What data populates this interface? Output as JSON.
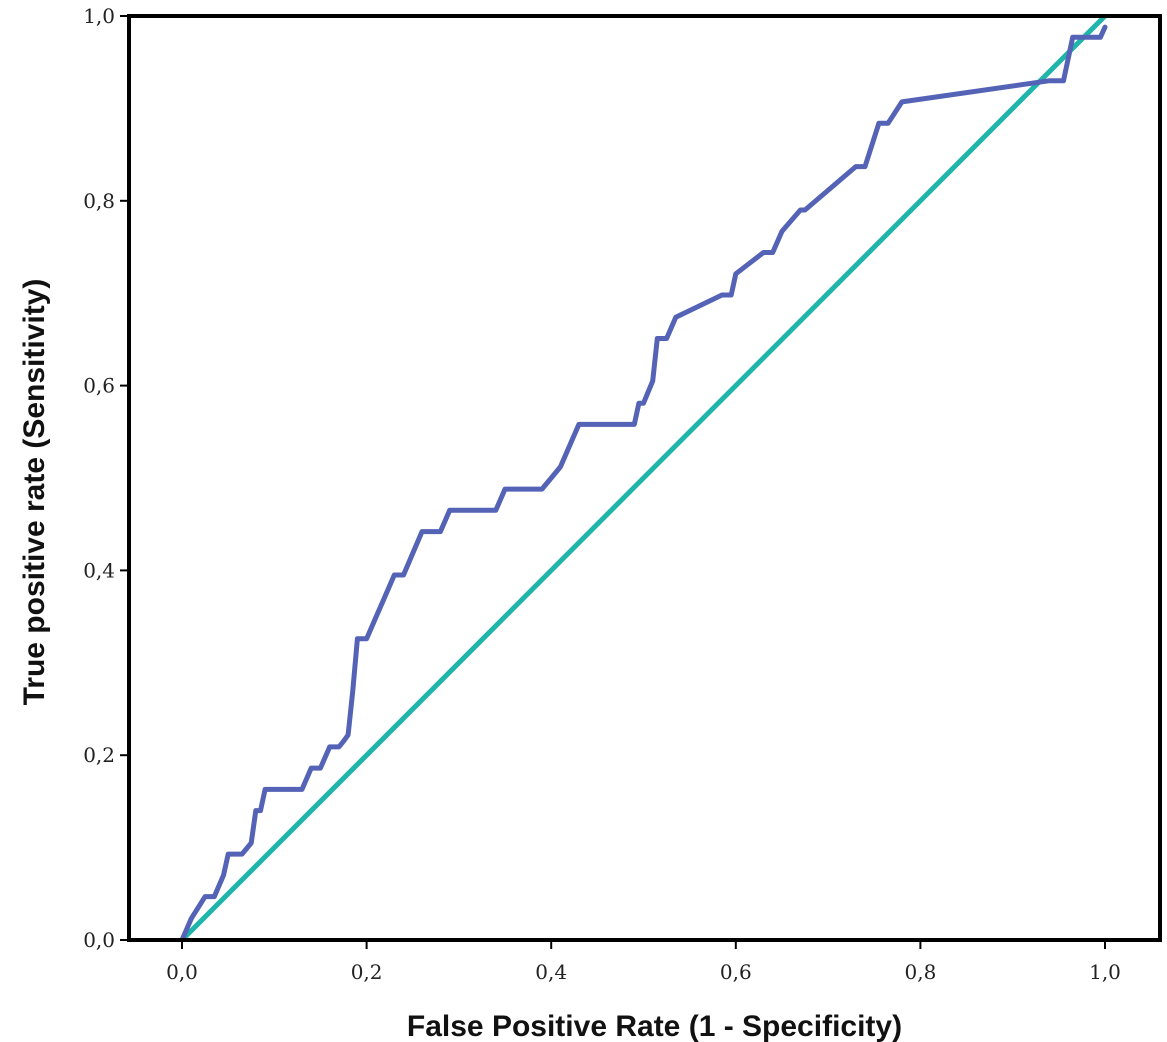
{
  "chart_data": {
    "type": "line",
    "title": "",
    "xlabel": "False Positive Rate (1 - Specificity)",
    "ylabel": "True positive rate (Sensitivity)",
    "xlim": [
      0,
      1
    ],
    "ylim": [
      0,
      1
    ],
    "x_ticks": [
      "0,0",
      "0,2",
      "0,4",
      "0,6",
      "0,8",
      "1,0"
    ],
    "y_ticks": [
      "0,0",
      "0,2",
      "0,4",
      "0,6",
      "0,8",
      "1,0"
    ],
    "grid": false,
    "legend": "none",
    "series": [
      {
        "color": "#5463b6",
        "x": [
          0.0,
          0.01,
          0.025,
          0.035,
          0.045,
          0.05,
          0.065,
          0.075,
          0.08,
          0.085,
          0.09,
          0.13,
          0.14,
          0.15,
          0.16,
          0.17,
          0.175,
          0.18,
          0.185,
          0.19,
          0.2,
          0.21,
          0.22,
          0.23,
          0.24,
          0.26,
          0.28,
          0.29,
          0.34,
          0.35,
          0.39,
          0.4,
          0.41,
          0.43,
          0.49,
          0.495,
          0.5,
          0.51,
          0.515,
          0.525,
          0.535,
          0.585,
          0.595,
          0.6,
          0.63,
          0.64,
          0.65,
          0.67,
          0.675,
          0.73,
          0.74,
          0.755,
          0.765,
          0.78,
          0.94,
          0.955,
          0.965,
          0.98,
          0.995,
          1.0
        ],
        "y": [
          0.0,
          0.023,
          0.047,
          0.047,
          0.07,
          0.093,
          0.093,
          0.105,
          0.14,
          0.14,
          0.163,
          0.163,
          0.186,
          0.186,
          0.209,
          0.209,
          0.215,
          0.222,
          0.27,
          0.326,
          0.326,
          0.349,
          0.372,
          0.395,
          0.395,
          0.442,
          0.442,
          0.465,
          0.465,
          0.488,
          0.488,
          0.5,
          0.512,
          0.558,
          0.558,
          0.581,
          0.581,
          0.605,
          0.651,
          0.651,
          0.674,
          0.698,
          0.698,
          0.721,
          0.744,
          0.744,
          0.767,
          0.79,
          0.79,
          0.837,
          0.837,
          0.884,
          0.884,
          0.907,
          0.93,
          0.93,
          0.977,
          0.977,
          0.977,
          0.988
        ]
      },
      {
        "color": "#1fb5aa",
        "x": [
          0,
          1
        ],
        "y": [
          0,
          1
        ]
      }
    ]
  }
}
